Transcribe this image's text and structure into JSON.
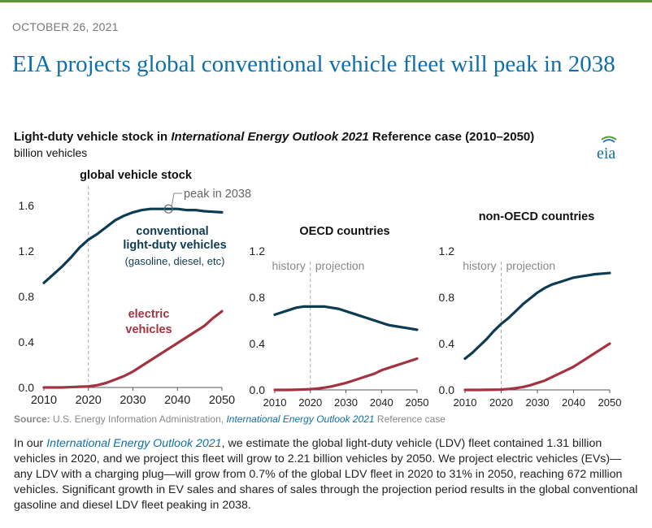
{
  "date": "OCTOBER 26, 2021",
  "headline": "EIA projects global conventional vehicle fleet will peak in 2038",
  "chart_title": {
    "prefix": "Light-duty vehicle stock in ",
    "italic": "International Energy Outlook 2021",
    "suffix": " Reference case (2010–2050)"
  },
  "units": "billion vehicles",
  "logo_text": "eia",
  "source": {
    "label": "Source:",
    "text": " U.S. Energy Information Administration, ",
    "italic": "International Energy Outlook 2021",
    "suffix": " Reference case"
  },
  "paragraph": {
    "p1": "In our ",
    "italic": "International Energy Outlook 2021",
    "p2": ", we estimate the global light-duty vehicle (LDV) fleet contained 1.31 billion vehicles in 2020, and we project this fleet will grow to 2.21 billion vehicles by 2050. We project electric vehicles (EVs)—any LDV with a charging plug—will grow from 0.7% of the global LDV fleet in 2020 to 31% in 2050, reaching 672 million vehicles. Significant growth in EV sales and shares of sales through the projection period results in the global conventional gasoline and diesel LDV fleet peaking in 2038."
  },
  "colors": {
    "conventional": "#0d3b52",
    "electric": "#a33340",
    "axis": "#555555",
    "divider": "#a8a8a8"
  },
  "chart_data": [
    {
      "type": "line",
      "title": "global vehicle stock",
      "x": [
        2010,
        2012,
        2014,
        2016,
        2018,
        2020,
        2022,
        2024,
        2026,
        2028,
        2030,
        2032,
        2034,
        2036,
        2038,
        2040,
        2042,
        2044,
        2046,
        2048,
        2050
      ],
      "xlim": [
        2010,
        2050
      ],
      "ylim": [
        0,
        1.6
      ],
      "yticks": [
        "0.0",
        "0.4",
        "0.8",
        "1.2",
        "1.6"
      ],
      "xticks": [
        "2010",
        "2020",
        "2030",
        "2040",
        "2050"
      ],
      "divider_year": 2020,
      "series": [
        {
          "name": "conventional light-duty vehicles",
          "key": "conventional",
          "values": [
            0.92,
            0.99,
            1.06,
            1.14,
            1.23,
            1.3,
            1.35,
            1.41,
            1.47,
            1.51,
            1.54,
            1.56,
            1.57,
            1.57,
            1.57,
            1.57,
            1.56,
            1.56,
            1.55,
            1.545,
            1.54
          ]
        },
        {
          "name": "electric vehicles",
          "key": "electric",
          "values": [
            0.0,
            0.0,
            0.0,
            0.003,
            0.006,
            0.009,
            0.02,
            0.04,
            0.07,
            0.1,
            0.14,
            0.19,
            0.24,
            0.29,
            0.34,
            0.39,
            0.44,
            0.49,
            0.54,
            0.61,
            0.67
          ]
        }
      ],
      "annotations": {
        "peak_label": "peak in 2038",
        "peak_year": 2038,
        "peak_value": 1.57,
        "conventional_label": [
          "conventional",
          "light-duty vehicles"
        ],
        "conventional_sublabel": "(gasoline, diesel, etc)",
        "electric_label": [
          "electric",
          "vehicles"
        ]
      }
    },
    {
      "type": "line",
      "title": "OECD countries",
      "x": [
        2010,
        2012,
        2014,
        2016,
        2018,
        2020,
        2022,
        2024,
        2026,
        2028,
        2030,
        2032,
        2034,
        2036,
        2038,
        2040,
        2042,
        2044,
        2046,
        2048,
        2050
      ],
      "xlim": [
        2010,
        2050
      ],
      "ylim": [
        0,
        1.2
      ],
      "yticks": [
        "0.0",
        "0.4",
        "0.8",
        "1.2"
      ],
      "xticks": [
        "2010",
        "2020",
        "2030",
        "2040",
        "2050"
      ],
      "divider_year": 2020,
      "history_label": "history",
      "projection_label": "projection",
      "series": [
        {
          "name": "conventional",
          "key": "conventional",
          "values": [
            0.65,
            0.67,
            0.69,
            0.71,
            0.72,
            0.72,
            0.72,
            0.72,
            0.71,
            0.7,
            0.68,
            0.66,
            0.64,
            0.62,
            0.6,
            0.58,
            0.56,
            0.55,
            0.54,
            0.53,
            0.52
          ]
        },
        {
          "name": "electric",
          "key": "electric",
          "values": [
            0.0,
            0.0,
            0.0,
            0.002,
            0.004,
            0.006,
            0.012,
            0.02,
            0.03,
            0.045,
            0.06,
            0.08,
            0.1,
            0.12,
            0.14,
            0.17,
            0.19,
            0.21,
            0.23,
            0.25,
            0.27
          ]
        }
      ]
    },
    {
      "type": "line",
      "title": "non-OECD countries",
      "x": [
        2010,
        2012,
        2014,
        2016,
        2018,
        2020,
        2022,
        2024,
        2026,
        2028,
        2030,
        2032,
        2034,
        2036,
        2038,
        2040,
        2042,
        2044,
        2046,
        2048,
        2050
      ],
      "xlim": [
        2010,
        2050
      ],
      "ylim": [
        0,
        1.2
      ],
      "yticks": [
        "0.0",
        "0.4",
        "0.8",
        "1.2"
      ],
      "xticks": [
        "2010",
        "2020",
        "2030",
        "2040",
        "2050"
      ],
      "divider_year": 2020,
      "history_label": "history",
      "projection_label": "projection",
      "series": [
        {
          "name": "conventional",
          "key": "conventional",
          "values": [
            0.27,
            0.32,
            0.38,
            0.44,
            0.51,
            0.57,
            0.62,
            0.68,
            0.74,
            0.79,
            0.84,
            0.88,
            0.91,
            0.93,
            0.95,
            0.97,
            0.98,
            0.99,
            1.0,
            1.005,
            1.01
          ]
        },
        {
          "name": "electric",
          "key": "electric",
          "values": [
            0.0,
            0.0,
            0.0,
            0.001,
            0.002,
            0.003,
            0.008,
            0.015,
            0.025,
            0.04,
            0.06,
            0.08,
            0.11,
            0.14,
            0.17,
            0.2,
            0.24,
            0.28,
            0.32,
            0.36,
            0.4
          ]
        }
      ]
    }
  ]
}
